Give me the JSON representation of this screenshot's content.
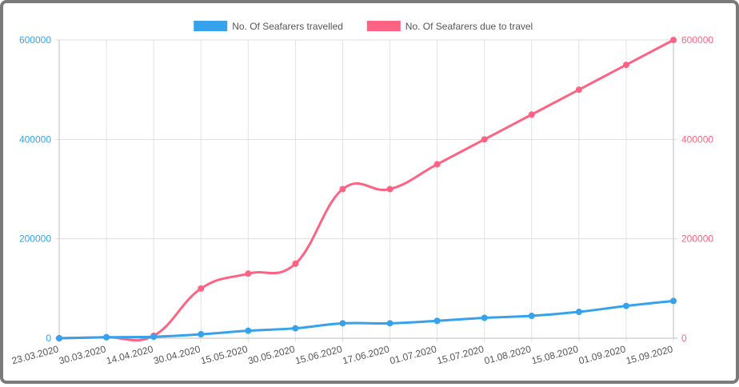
{
  "chart_data": {
    "type": "line",
    "categories": [
      "23.03.2020",
      "30.03.2020",
      "14.04.2020",
      "30.04.2020",
      "15.05.2020",
      "30.05.2020",
      "15.06.2020",
      "17.06.2020",
      "01.07.2020",
      "15.07.2020",
      "01.08.2020",
      "15.08.2020",
      "01.09.2020",
      "15.09.2020"
    ],
    "series": [
      {
        "name": "No. Of Seafarers travelled",
        "color": "#36a2eb",
        "axis": "left",
        "values": [
          0,
          2000,
          3000,
          8000,
          15000,
          20000,
          30000,
          30000,
          35000,
          41000,
          45000,
          53000,
          65000,
          75000
        ]
      },
      {
        "name": "No. Of Seafarers due to travel",
        "color": "#ff6384",
        "axis": "right",
        "values": [
          0,
          2000,
          5000,
          100000,
          130000,
          150000,
          300000,
          300000,
          350000,
          400000,
          450000,
          500000,
          550000,
          600000
        ]
      }
    ],
    "y_left": {
      "ylim": [
        0,
        600000
      ],
      "ticks": [
        "0",
        "200000",
        "400000",
        "600000"
      ],
      "color": "#36a2eb"
    },
    "y_right": {
      "ylim": [
        0,
        600000
      ],
      "ticks": [
        "0",
        "200000",
        "400000",
        "600000"
      ],
      "color": "#ff6384"
    },
    "grid": true,
    "legend_position": "top-center",
    "title": "",
    "xlabel": "",
    "ylabel": ""
  }
}
